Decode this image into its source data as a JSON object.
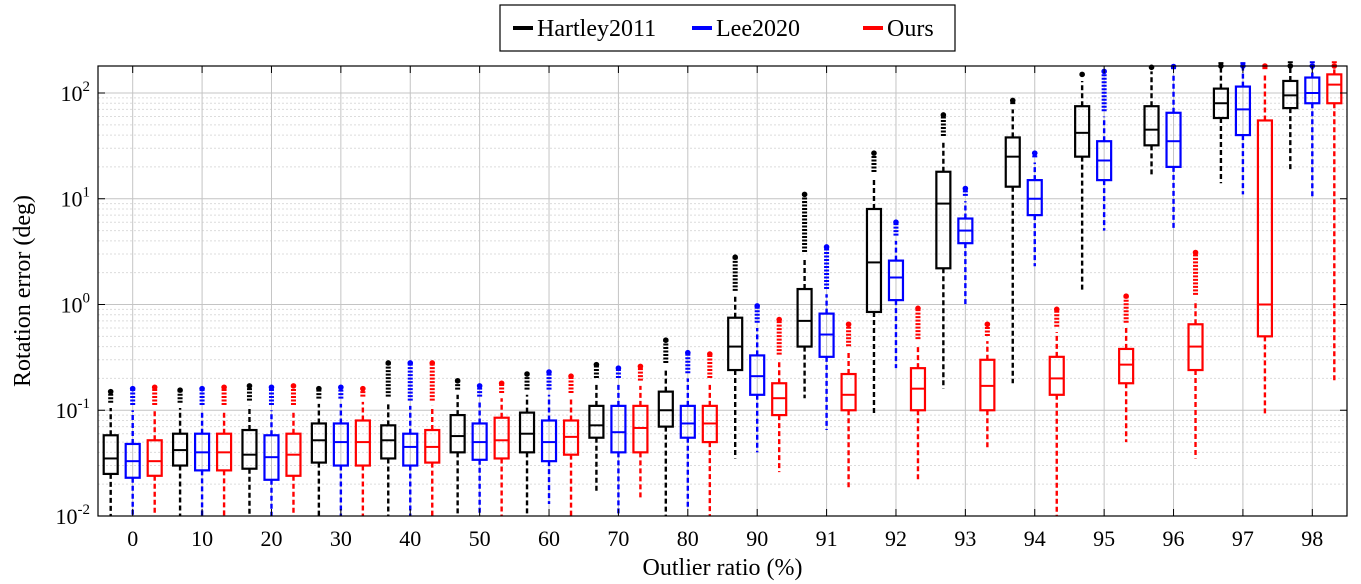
{
  "chart_data": {
    "type": "boxplot",
    "xlabel": "Outlier ratio (%)",
    "ylabel": "Rotation error (deg)",
    "yscale": "log",
    "ylim": [
      0.01,
      180
    ],
    "grid": true,
    "legend_position": "top-center",
    "categories": [
      "0",
      "10",
      "20",
      "30",
      "40",
      "50",
      "60",
      "70",
      "80",
      "90",
      "91",
      "92",
      "93",
      "94",
      "95",
      "96",
      "97",
      "98"
    ],
    "yticks": [
      {
        "value": 0.01,
        "mantissa": "10",
        "exponent": "-2"
      },
      {
        "value": 0.1,
        "mantissa": "10",
        "exponent": "-1"
      },
      {
        "value": 1,
        "mantissa": "10",
        "exponent": "0"
      },
      {
        "value": 10,
        "mantissa": "10",
        "exponent": "1"
      },
      {
        "value": 100,
        "mantissa": "10",
        "exponent": "2"
      }
    ],
    "series": [
      {
        "name": "Hartley2011",
        "color": "#000000",
        "boxes": [
          {
            "whisker_low": 0.01,
            "q1": 0.025,
            "median": 0.035,
            "q3": 0.058,
            "whisker_high": 0.105,
            "outlier_top": 0.15
          },
          {
            "whisker_low": 0.01,
            "q1": 0.03,
            "median": 0.042,
            "q3": 0.06,
            "whisker_high": 0.105,
            "outlier_top": 0.155
          },
          {
            "whisker_low": 0.01,
            "q1": 0.028,
            "median": 0.038,
            "q3": 0.065,
            "whisker_high": 0.11,
            "outlier_top": 0.17
          },
          {
            "whisker_low": 0.01,
            "q1": 0.032,
            "median": 0.052,
            "q3": 0.075,
            "whisker_high": 0.115,
            "outlier_top": 0.16
          },
          {
            "whisker_low": 0.01,
            "q1": 0.035,
            "median": 0.052,
            "q3": 0.072,
            "whisker_high": 0.12,
            "outlier_top": 0.28
          },
          {
            "whisker_low": 0.01,
            "q1": 0.04,
            "median": 0.057,
            "q3": 0.09,
            "whisker_high": 0.14,
            "outlier_top": 0.19
          },
          {
            "whisker_low": 0.01,
            "q1": 0.04,
            "median": 0.06,
            "q3": 0.095,
            "whisker_high": 0.14,
            "outlier_top": 0.22
          },
          {
            "whisker_low": 0.017,
            "q1": 0.055,
            "median": 0.072,
            "q3": 0.11,
            "whisker_high": 0.18,
            "outlier_top": 0.27
          },
          {
            "whisker_low": 0.01,
            "q1": 0.07,
            "median": 0.1,
            "q3": 0.15,
            "whisker_high": 0.25,
            "outlier_top": 0.46
          },
          {
            "whisker_low": 0.035,
            "q1": 0.24,
            "median": 0.4,
            "q3": 0.75,
            "whisker_high": 1.2,
            "outlier_top": 2.8
          },
          {
            "whisker_low": 0.13,
            "q1": 0.4,
            "median": 0.7,
            "q3": 1.4,
            "whisker_high": 2.8,
            "outlier_top": 11
          },
          {
            "whisker_low": 0.09,
            "q1": 0.85,
            "median": 2.5,
            "q3": 8,
            "whisker_high": 16,
            "outlier_top": 27
          },
          {
            "whisker_low": 0.16,
            "q1": 2.2,
            "median": 9,
            "q3": 18,
            "whisker_high": 35,
            "outlier_top": 62
          },
          {
            "whisker_low": 0.18,
            "q1": 13,
            "median": 25,
            "q3": 38,
            "whisker_high": 70,
            "outlier_top": 85
          },
          {
            "whisker_low": 1.35,
            "q1": 25,
            "median": 42,
            "q3": 75,
            "whisker_high": 130,
            "outlier_top": 150
          },
          {
            "whisker_low": 17,
            "q1": 32,
            "median": 45,
            "q3": 75,
            "whisker_high": 160,
            "outlier_top": 175
          },
          {
            "whisker_low": 14,
            "q1": 58,
            "median": 80,
            "q3": 110,
            "whisker_high": 175,
            "outlier_top": 180
          },
          {
            "whisker_low": 18,
            "q1": 72,
            "median": 95,
            "q3": 130,
            "whisker_high": 178,
            "outlier_top": 180
          }
        ]
      },
      {
        "name": "Lee2020",
        "color": "#0000ff",
        "boxes": [
          {
            "whisker_low": 0.01,
            "q1": 0.023,
            "median": 0.033,
            "q3": 0.048,
            "whisker_high": 0.1,
            "outlier_top": 0.16
          },
          {
            "whisker_low": 0.01,
            "q1": 0.027,
            "median": 0.04,
            "q3": 0.06,
            "whisker_high": 0.1,
            "outlier_top": 0.16
          },
          {
            "whisker_low": 0.01,
            "q1": 0.022,
            "median": 0.036,
            "q3": 0.058,
            "whisker_high": 0.1,
            "outlier_top": 0.165
          },
          {
            "whisker_low": 0.01,
            "q1": 0.03,
            "median": 0.05,
            "q3": 0.075,
            "whisker_high": 0.115,
            "outlier_top": 0.165
          },
          {
            "whisker_low": 0.01,
            "q1": 0.03,
            "median": 0.045,
            "q3": 0.06,
            "whisker_high": 0.11,
            "outlier_top": 0.28
          },
          {
            "whisker_low": 0.01,
            "q1": 0.034,
            "median": 0.05,
            "q3": 0.075,
            "whisker_high": 0.12,
            "outlier_top": 0.17
          },
          {
            "whisker_low": 0.013,
            "q1": 0.033,
            "median": 0.05,
            "q3": 0.08,
            "whisker_high": 0.14,
            "outlier_top": 0.23
          },
          {
            "whisker_low": 0.01,
            "q1": 0.04,
            "median": 0.062,
            "q3": 0.11,
            "whisker_high": 0.18,
            "outlier_top": 0.25
          },
          {
            "whisker_low": 0.012,
            "q1": 0.055,
            "median": 0.075,
            "q3": 0.11,
            "whisker_high": 0.2,
            "outlier_top": 0.35
          },
          {
            "whisker_low": 0.04,
            "q1": 0.14,
            "median": 0.21,
            "q3": 0.33,
            "whisker_high": 0.6,
            "outlier_top": 0.97
          },
          {
            "whisker_low": 0.065,
            "q1": 0.32,
            "median": 0.52,
            "q3": 0.82,
            "whisker_high": 1.25,
            "outlier_top": 3.5
          },
          {
            "whisker_low": 0.25,
            "q1": 1.1,
            "median": 1.8,
            "q3": 2.6,
            "whisker_high": 4,
            "outlier_top": 6
          },
          {
            "whisker_low": 1.0,
            "q1": 3.8,
            "median": 5,
            "q3": 6.5,
            "whisker_high": 9.5,
            "outlier_top": 12.5
          },
          {
            "whisker_low": 2.3,
            "q1": 7,
            "median": 10,
            "q3": 15,
            "whisker_high": 22,
            "outlier_top": 27
          },
          {
            "whisker_low": 5,
            "q1": 15,
            "median": 23,
            "q3": 35,
            "whisker_high": 60,
            "outlier_top": 160
          },
          {
            "whisker_low": 5,
            "q1": 20,
            "median": 35,
            "q3": 65,
            "whisker_high": 150,
            "outlier_top": 178
          },
          {
            "whisker_low": 11,
            "q1": 40,
            "median": 70,
            "q3": 115,
            "whisker_high": 175,
            "outlier_top": 180
          },
          {
            "whisker_low": 10,
            "q1": 80,
            "median": 100,
            "q3": 140,
            "whisker_high": 178,
            "outlier_top": 180
          }
        ]
      },
      {
        "name": "Ours",
        "color": "#ff0000",
        "boxes": [
          {
            "whisker_low": 0.01,
            "q1": 0.024,
            "median": 0.033,
            "q3": 0.052,
            "whisker_high": 0.1,
            "outlier_top": 0.165
          },
          {
            "whisker_low": 0.01,
            "q1": 0.027,
            "median": 0.04,
            "q3": 0.06,
            "whisker_high": 0.1,
            "outlier_top": 0.165
          },
          {
            "whisker_low": 0.01,
            "q1": 0.024,
            "median": 0.038,
            "q3": 0.06,
            "whisker_high": 0.1,
            "outlier_top": 0.17
          },
          {
            "whisker_low": 0.01,
            "q1": 0.03,
            "median": 0.05,
            "q3": 0.08,
            "whisker_high": 0.12,
            "outlier_top": 0.16
          },
          {
            "whisker_low": 0.01,
            "q1": 0.032,
            "median": 0.045,
            "q3": 0.065,
            "whisker_high": 0.11,
            "outlier_top": 0.28
          },
          {
            "whisker_low": 0.01,
            "q1": 0.035,
            "median": 0.052,
            "q3": 0.085,
            "whisker_high": 0.13,
            "outlier_top": 0.18
          },
          {
            "whisker_low": 0.01,
            "q1": 0.038,
            "median": 0.056,
            "q3": 0.08,
            "whisker_high": 0.13,
            "outlier_top": 0.21
          },
          {
            "whisker_low": 0.015,
            "q1": 0.04,
            "median": 0.068,
            "q3": 0.11,
            "whisker_high": 0.17,
            "outlier_top": 0.26
          },
          {
            "whisker_low": 0.01,
            "q1": 0.05,
            "median": 0.075,
            "q3": 0.11,
            "whisker_high": 0.18,
            "outlier_top": 0.34
          },
          {
            "whisker_low": 0.026,
            "q1": 0.09,
            "median": 0.13,
            "q3": 0.18,
            "whisker_high": 0.3,
            "outlier_top": 0.72
          },
          {
            "whisker_low": 0.018,
            "q1": 0.1,
            "median": 0.14,
            "q3": 0.22,
            "whisker_high": 0.36,
            "outlier_top": 0.65
          },
          {
            "whisker_low": 0.022,
            "q1": 0.1,
            "median": 0.16,
            "q3": 0.25,
            "whisker_high": 0.42,
            "outlier_top": 0.92
          },
          {
            "whisker_low": 0.042,
            "q1": 0.1,
            "median": 0.17,
            "q3": 0.3,
            "whisker_high": 0.45,
            "outlier_top": 0.65
          },
          {
            "whisker_low": 0.01,
            "q1": 0.14,
            "median": 0.2,
            "q3": 0.32,
            "whisker_high": 0.55,
            "outlier_top": 0.9
          },
          {
            "whisker_low": 0.05,
            "q1": 0.18,
            "median": 0.27,
            "q3": 0.38,
            "whisker_high": 0.6,
            "outlier_top": 1.2
          },
          {
            "whisker_low": 0.035,
            "q1": 0.24,
            "median": 0.4,
            "q3": 0.65,
            "whisker_high": 1.1,
            "outlier_top": 3.1
          },
          {
            "whisker_low": 0.09,
            "q1": 0.5,
            "median": 1.0,
            "q3": 55,
            "whisker_high": 150,
            "outlier_top": 180
          },
          {
            "whisker_low": 0.18,
            "q1": 80,
            "median": 120,
            "q3": 150,
            "whisker_high": 178,
            "outlier_top": 180
          }
        ]
      }
    ]
  }
}
